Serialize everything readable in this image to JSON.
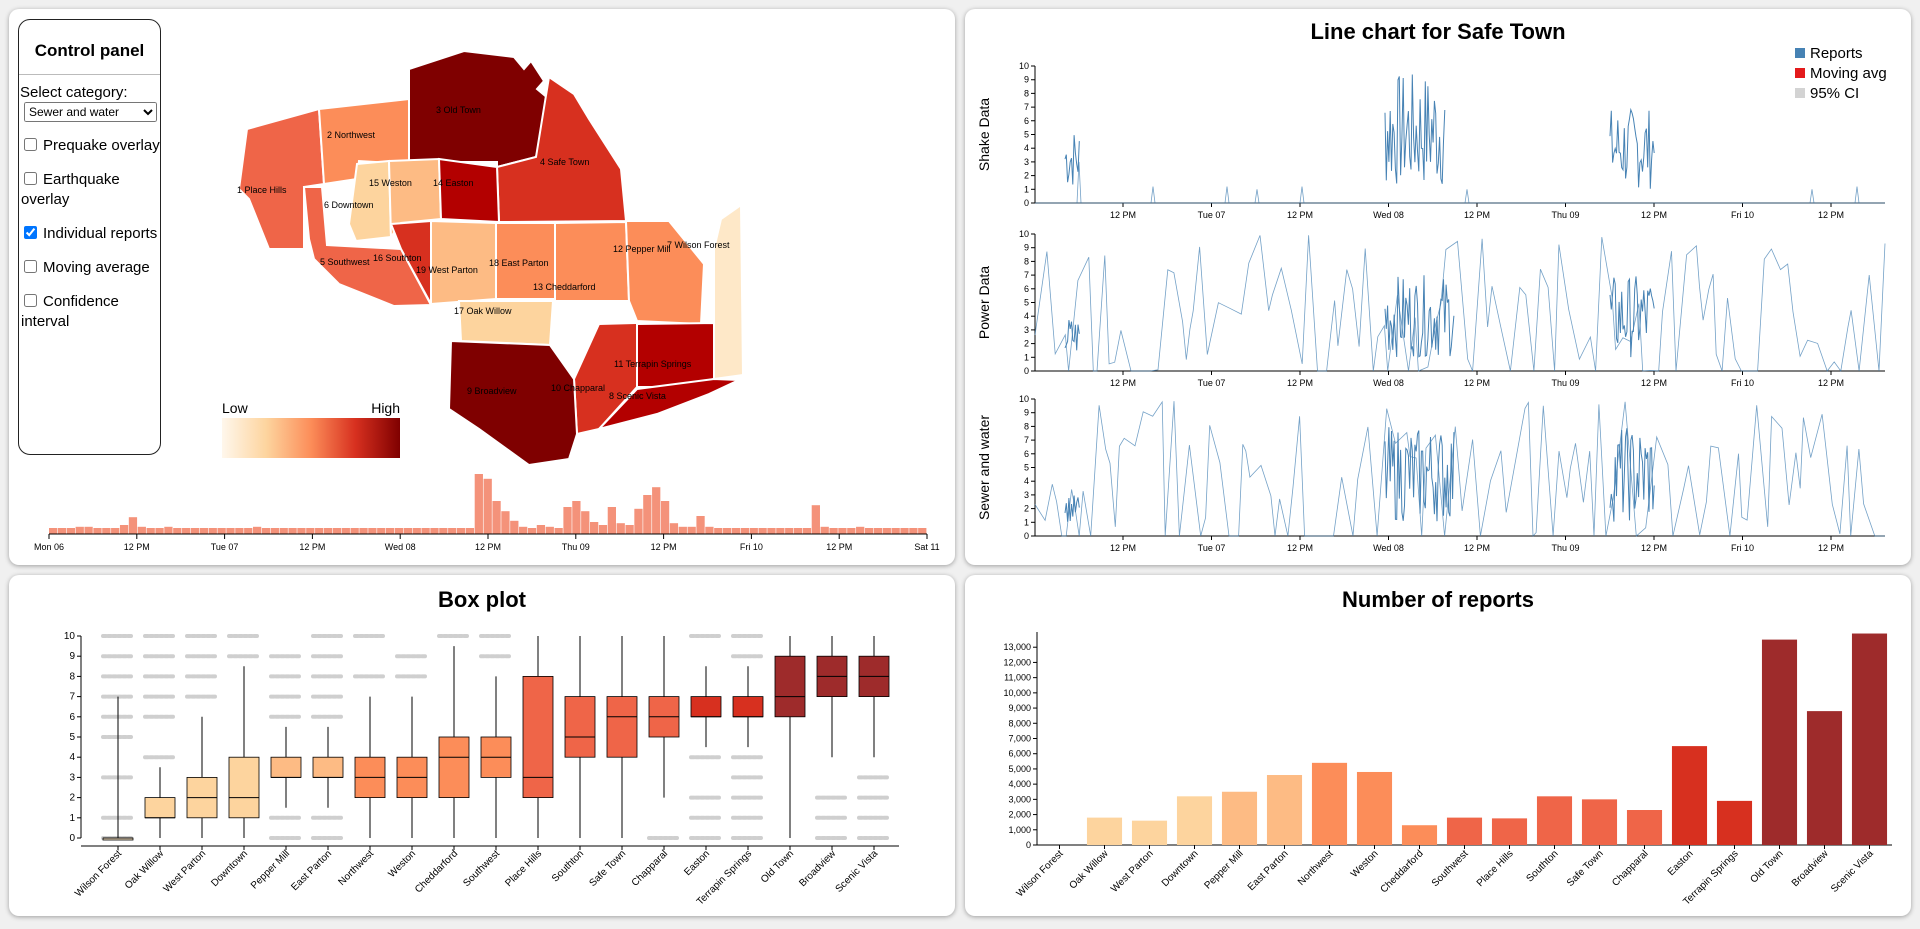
{
  "control_panel": {
    "title": "Control panel",
    "select_label": "Select category:",
    "selected_category": "Sewer and water",
    "options": [
      {
        "label": "Prequake overlay",
        "checked": false
      },
      {
        "label": "Earthquake overlay",
        "checked": false
      },
      {
        "label": "Individual reports",
        "checked": true
      },
      {
        "label": "Moving average",
        "checked": false
      },
      {
        "label": "Confidence interval",
        "checked": false
      }
    ]
  },
  "map": {
    "legend_low": "Low",
    "legend_high": "High",
    "neighborhoods": [
      {
        "label": "1 Place Hills",
        "color": "#ef6548"
      },
      {
        "label": "2 Northwest",
        "color": "#fc8d59"
      },
      {
        "label": "3 Old Town",
        "color": "#7f0000"
      },
      {
        "label": "4 Safe Town",
        "color": "#d7301f"
      },
      {
        "label": "5 Southwest",
        "color": "#ef6548"
      },
      {
        "label": "6 Downtown",
        "color": "#fdd49e"
      },
      {
        "label": "7 Wilson Forest",
        "color": "#fee8c8"
      },
      {
        "label": "8 Scenic Vista",
        "color": "#b30000"
      },
      {
        "label": "9 Broadview",
        "color": "#7f0000"
      },
      {
        "label": "10 Chapparal",
        "color": "#d7301f"
      },
      {
        "label": "11 Terrapin Springs",
        "color": "#b30000"
      },
      {
        "label": "12 Pepper Mill",
        "color": "#fc8d59"
      },
      {
        "label": "13 Cheddarford",
        "color": "#fc8d59"
      },
      {
        "label": "14 Easton",
        "color": "#b30000"
      },
      {
        "label": "15 Weston",
        "color": "#fdbb84"
      },
      {
        "label": "16 Southton",
        "color": "#d7301f"
      },
      {
        "label": "17 Oak Willow",
        "color": "#fdd49e"
      },
      {
        "label": "18 East Parton",
        "color": "#fc8d59"
      },
      {
        "label": "19 West Parton",
        "color": "#fdbb84"
      }
    ]
  },
  "timeline": {
    "tick_labels": [
      "Mon 06",
      "12 PM",
      "Tue 07",
      "12 PM",
      "Wed 08",
      "12 PM",
      "Thu 09",
      "12 PM",
      "Fri 10",
      "12 PM",
      "Sat 11"
    ],
    "bar_heights": [
      0.1,
      0.1,
      0.1,
      0.12,
      0.12,
      0.1,
      0.1,
      0.1,
      0.15,
      0.28,
      0.12,
      0.1,
      0.1,
      0.12,
      0.1,
      0.1,
      0.1,
      0.1,
      0.1,
      0.1,
      0.1,
      0.1,
      0.1,
      0.12,
      0.1,
      0.1,
      0.1,
      0.1,
      0.1,
      0.1,
      0.1,
      0.1,
      0.1,
      0.1,
      0.1,
      0.1,
      0.1,
      0.1,
      0.1,
      0.1,
      0.1,
      0.1,
      0.1,
      0.1,
      0.1,
      0.1,
      0.1,
      0.1,
      1.0,
      0.92,
      0.55,
      0.38,
      0.22,
      0.12,
      0.1,
      0.15,
      0.12,
      0.1,
      0.45,
      0.55,
      0.38,
      0.2,
      0.15,
      0.45,
      0.18,
      0.15,
      0.42,
      0.65,
      0.78,
      0.55,
      0.18,
      0.12,
      0.12,
      0.3,
      0.12,
      0.1,
      0.1,
      0.1,
      0.1,
      0.1,
      0.1,
      0.1,
      0.1,
      0.1,
      0.1,
      0.1,
      0.48,
      0.12,
      0.1,
      0.1,
      0.1,
      0.12,
      0.1,
      0.1,
      0.1,
      0.1,
      0.1,
      0.1,
      0.1
    ],
    "color": "#f4927a"
  },
  "line_chart": {
    "title": "Line chart for Safe Town",
    "legend": [
      {
        "label": "Reports",
        "color": "#4682b4"
      },
      {
        "label": "Moving avg",
        "color": "#e31a1c"
      },
      {
        "label": "95% CI",
        "color": "#d3d3d3"
      }
    ],
    "y_ticks": [
      "0",
      "1",
      "2",
      "3",
      "4",
      "5",
      "6",
      "7",
      "8",
      "9",
      "10"
    ],
    "x_ticks": [
      "12 PM",
      "Tue 07",
      "12 PM",
      "Wed 08",
      "12 PM",
      "Thu 09",
      "12 PM",
      "Fri 10",
      "12 PM"
    ],
    "panels": [
      {
        "ylabel": "Shake Data"
      },
      {
        "ylabel": "Power Data"
      },
      {
        "ylabel": "Sewer and water"
      }
    ]
  },
  "box_plot": {
    "title": "Box plot",
    "y_ticks": [
      "0",
      "1",
      "2",
      "3",
      "4",
      "5",
      "6",
      "7",
      "8",
      "9",
      "10"
    ],
    "ylim": [
      0,
      10
    ],
    "neighborhoods": [
      {
        "name": "Wilson Forest",
        "color": "#fee8c8",
        "q1": 0,
        "median": 0,
        "q3": 0,
        "lo": 0,
        "hi": 7
      },
      {
        "name": "Oak Willow",
        "color": "#fdd49e",
        "q1": 1,
        "median": 1,
        "q3": 2,
        "lo": 0,
        "hi": 3.5
      },
      {
        "name": "West Parton",
        "color": "#fdd49e",
        "q1": 1,
        "median": 2,
        "q3": 3,
        "lo": 0,
        "hi": 6
      },
      {
        "name": "Downtown",
        "color": "#fdd49e",
        "q1": 1,
        "median": 2,
        "q3": 4,
        "lo": 0,
        "hi": 8.5
      },
      {
        "name": "Pepper Mill",
        "color": "#fdbb84",
        "q1": 3,
        "median": 3,
        "q3": 4,
        "lo": 1.5,
        "hi": 5.5
      },
      {
        "name": "East Parton",
        "color": "#fdbb84",
        "q1": 3,
        "median": 3,
        "q3": 4,
        "lo": 1.5,
        "hi": 5.5
      },
      {
        "name": "Northwest",
        "color": "#fc8d59",
        "q1": 2,
        "median": 3,
        "q3": 4,
        "lo": 0,
        "hi": 7
      },
      {
        "name": "Weston",
        "color": "#fc8d59",
        "q1": 2,
        "median": 3,
        "q3": 4,
        "lo": 0,
        "hi": 7
      },
      {
        "name": "Cheddarford",
        "color": "#fc8d59",
        "q1": 2,
        "median": 4,
        "q3": 5,
        "lo": 0,
        "hi": 9.5
      },
      {
        "name": "Southwest",
        "color": "#fc8d59",
        "q1": 3,
        "median": 4,
        "q3": 5,
        "lo": 0,
        "hi": 8
      },
      {
        "name": "Place Hills",
        "color": "#ef6548",
        "q1": 2,
        "median": 3,
        "q3": 8,
        "lo": 0,
        "hi": 10
      },
      {
        "name": "Southton",
        "color": "#ef6548",
        "q1": 4,
        "median": 5,
        "q3": 7,
        "lo": 0,
        "hi": 10
      },
      {
        "name": "Safe Town",
        "color": "#ef6548",
        "q1": 4,
        "median": 6,
        "q3": 7,
        "lo": 0,
        "hi": 10
      },
      {
        "name": "Chapparal",
        "color": "#ef6548",
        "q1": 5,
        "median": 6,
        "q3": 7,
        "lo": 2,
        "hi": 10
      },
      {
        "name": "Easton",
        "color": "#d7301f",
        "q1": 6,
        "median": 6,
        "q3": 7,
        "lo": 4.5,
        "hi": 8.5
      },
      {
        "name": "Terrapin Springs",
        "color": "#d7301f",
        "q1": 6,
        "median": 6,
        "q3": 7,
        "lo": 4.5,
        "hi": 8.5
      },
      {
        "name": "Old Town",
        "color": "#9e2b2b",
        "q1": 6,
        "median": 7,
        "q3": 9,
        "lo": 0,
        "hi": 10
      },
      {
        "name": "Broadview",
        "color": "#9e2b2b",
        "q1": 7,
        "median": 8,
        "q3": 9,
        "lo": 4,
        "hi": 10
      },
      {
        "name": "Scenic Vista",
        "color": "#9e2b2b",
        "q1": 7,
        "median": 8,
        "q3": 9,
        "lo": 4,
        "hi": 10
      }
    ]
  },
  "bar_chart": {
    "title": "Number of reports",
    "y_ticks": [
      "0",
      "1,000",
      "2,000",
      "3,000",
      "4,000",
      "5,000",
      "6,000",
      "7,000",
      "8,000",
      "9,000",
      "10,000",
      "11,000",
      "12,000",
      "13,000"
    ],
    "ylim": [
      0,
      14000
    ],
    "chart_data": {
      "type": "bar",
      "categories": [
        "Wilson Forest",
        "Oak Willow",
        "West Parton",
        "Downtown",
        "Pepper Mill",
        "East Parton",
        "Northwest",
        "Weston",
        "Cheddarford",
        "Southwest",
        "Place Hills",
        "Southton",
        "Safe Town",
        "Chapparal",
        "Easton",
        "Terrapin Springs",
        "Old Town",
        "Broadview",
        "Scenic Vista"
      ],
      "values": [
        0,
        1800,
        1600,
        3200,
        3500,
        4600,
        5400,
        4800,
        1300,
        1800,
        1750,
        3200,
        3000,
        2300,
        6500,
        2900,
        13500,
        8800,
        13900
      ],
      "colors": [
        "#fee8c8",
        "#fdd49e",
        "#fdd49e",
        "#fdd49e",
        "#fdbb84",
        "#fdbb84",
        "#fc8d59",
        "#fc8d59",
        "#fc8d59",
        "#ef6548",
        "#ef6548",
        "#ef6548",
        "#ef6548",
        "#ef6548",
        "#d7301f",
        "#d7301f",
        "#9e2b2b",
        "#9e2b2b",
        "#9e2b2b"
      ]
    }
  }
}
